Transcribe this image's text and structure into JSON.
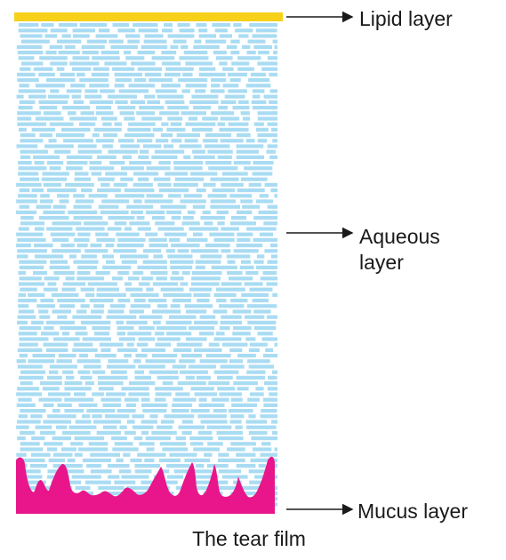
{
  "caption": "The tear film",
  "layers": {
    "lipid": {
      "label": "Lipid layer",
      "color": "#f7d01a"
    },
    "aqueous": {
      "label_line1": "Aqueous",
      "label_line2": "layer",
      "color": "#a9dcf3"
    },
    "mucus": {
      "label": "Mucus layer",
      "color": "#e8168a"
    }
  },
  "arrow_color": "#1a1a1a"
}
